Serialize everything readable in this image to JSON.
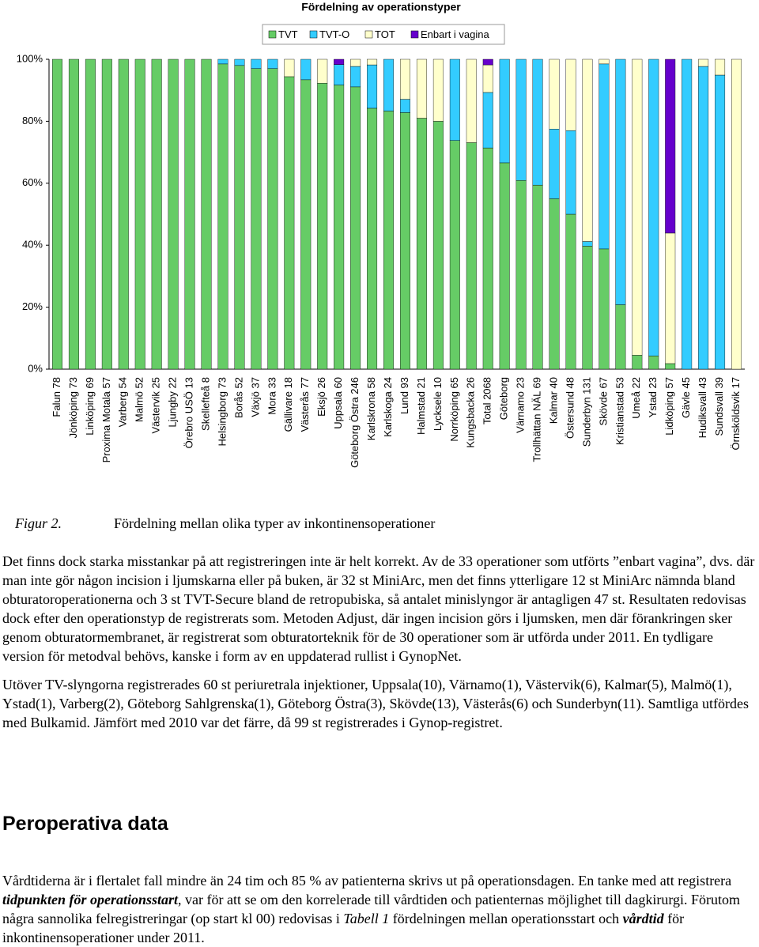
{
  "chart_data": {
    "type": "stacked-bar",
    "title": "Fördelning av operationstyper",
    "categories": [
      "Falun 78",
      "Jönköping 73",
      "Linköping 69",
      "Proxima Motala 57",
      "Varberg 54",
      "Malmö 52",
      "Västervik 25",
      "Ljungby 22",
      "Örebro USÖ 13",
      "Skellefteå 8",
      "Helsingborg 73",
      "Borås 52",
      "Växjö 37",
      "Mora 33",
      "Gällivare 18",
      "Västerås 77",
      "Eksjö 26",
      "Uppsala 60",
      "Göteborg Östra 246",
      "Karlskrona 58",
      "Karlskoga 24",
      "Lund 93",
      "Halmstad 21",
      "Lycksele 10",
      "Norrköping 65",
      "Kungsbacka 26",
      "Total 2068",
      "Göteborg",
      "Värnamo 23",
      "Trollhättan NÄL 69",
      "Kalmar 40",
      "Östersund 48",
      "Sunderbyn 131",
      "Skövde 67",
      "Kristianstad 53",
      "Umeå 22",
      "Ystad 23",
      "Lidköping 57",
      "Gävle 45",
      "Hudiksvall 43",
      "Sundsvall 39",
      "Örnsköldsvik 17"
    ],
    "series": [
      {
        "name": "TVT",
        "color": "#66cc66",
        "values": [
          100,
          100,
          100,
          100,
          100,
          100,
          100,
          100,
          100,
          100,
          98.5,
          98,
          97,
          97,
          94.4,
          93.4,
          92.3,
          91.7,
          91.1,
          84.2,
          83.3,
          82.8,
          81,
          80,
          73.8,
          73.1,
          71.4,
          66.6,
          60.9,
          59.4,
          55,
          50,
          39.7,
          38.8,
          20.8,
          4.5,
          4.3,
          1.8,
          0,
          0,
          0,
          0
        ]
      },
      {
        "name": "TVT-O",
        "color": "#33ccff",
        "values": [
          0,
          0,
          0,
          0,
          0,
          0,
          0,
          0,
          0,
          0,
          1.5,
          2,
          3,
          3,
          0,
          6.6,
          0,
          6.6,
          6.6,
          14,
          16.7,
          4.3,
          0,
          0,
          26.2,
          0,
          17.9,
          33.4,
          39.1,
          40.6,
          22.5,
          27,
          1.5,
          59.7,
          79.2,
          0,
          95.7,
          0,
          100,
          97.7,
          94.9,
          0
        ]
      },
      {
        "name": "TOT",
        "color": "#ffffcc",
        "values": [
          0,
          0,
          0,
          0,
          0,
          0,
          0,
          0,
          0,
          0,
          0,
          0,
          0,
          0,
          5.6,
          0,
          7.7,
          0,
          2.3,
          1.8,
          0,
          12.9,
          19,
          20,
          0,
          26.9,
          8.9,
          0,
          0,
          0,
          22.5,
          23,
          58.8,
          1.5,
          0,
          95.5,
          0,
          42.1,
          0,
          2.3,
          5.1,
          100
        ]
      },
      {
        "name": "Enbart i vagina",
        "color": "#6600cc",
        "values": [
          0,
          0,
          0,
          0,
          0,
          0,
          0,
          0,
          0,
          0,
          0,
          0,
          0,
          0,
          0,
          0,
          0,
          1.7,
          0,
          0,
          0,
          0,
          0,
          0,
          0,
          0,
          1.8,
          0,
          0,
          0,
          0,
          0,
          0,
          0,
          0,
          0,
          0,
          56.1,
          0,
          0,
          0,
          0
        ]
      }
    ],
    "ylim": [
      0,
      100
    ],
    "yticks": [
      {
        "value": 0,
        "label": "0%"
      },
      {
        "value": 20,
        "label": "20%"
      },
      {
        "value": 40,
        "label": "40%"
      },
      {
        "value": 60,
        "label": "60%"
      },
      {
        "value": 80,
        "label": "80%"
      },
      {
        "value": 100,
        "label": "100%"
      }
    ],
    "grid": false,
    "legend": "top"
  },
  "figure_caption": {
    "label": "Figur 2.",
    "text": "Fördelning mellan olika typer av inkontinensoperationer"
  },
  "paragraphs": [
    [
      {
        "text": "Det finns dock starka misstankar på att registreringen inte är helt korrekt. Av de 33 operationer som utförts ”enbart vagina”, dvs. där man inte gör någon incision i ljumskarna eller på buken, är 32 st MiniArc, men det finns ytterligare 12 st MiniArc nämnda bland obturatoroperationerna och 3 st TVT-Secure bland de retropubiska, så antalet minislyngor är antagligen 47 st. Resultaten redovisas dock efter den operationstyp de registrerats som. Metoden Adjust, där ingen incision görs i ljumsken, men där förankringen sker genom obturatormembranet, är registrerat som obturatorteknik för de 30 operationer som är utförda under 2011. En tydligare version för metodval behövs, kanske i form av en uppdaterad rullist i GynopNet.",
        "style": "normal"
      }
    ],
    [
      {
        "text": "Utöver TV-slyngorna registrerades 60 st periuretrala injektioner, Uppsala(10), Värnamo(1), Västervik(6), Kalmar(5), Malmö(1), Ystad(1), Varberg(2), Göteborg Sahlgrenska(1), Göteborg Östra(3), Skövde(13), Västerås(6) och Sunderbyn(11). Samtliga utfördes med Bulkamid. Jämfört med 2010 var det färre, då 99 st registrerades i Gynop-registret.",
        "style": "normal"
      }
    ]
  ],
  "heading": "Peroperativa data",
  "paragraphs_after": [
    [
      {
        "text": "Vårdtiderna är i flertalet fall mindre än 24 tim och 85 % av patienterna skrivs ut på operationsdagen. En tanke med att registrera ",
        "style": "normal"
      },
      {
        "text": "tidpunkten för operationsstart",
        "style": "bold-italic"
      },
      {
        "text": ", var för att se om den korrelerade till vårdtiden och patienternas möjlighet till dagkirurgi. Förutom några sannolika felregistreringar (op start kl 00) redovisas i ",
        "style": "normal"
      },
      {
        "text": "Tabell 1",
        "style": "italic"
      },
      {
        "text": " fördelningen mellan operationsstart och ",
        "style": "normal"
      },
      {
        "text": "vårdtid",
        "style": "bold-italic"
      },
      {
        "text": " för inkontinensoperationer under 2011.",
        "style": "normal"
      }
    ]
  ]
}
